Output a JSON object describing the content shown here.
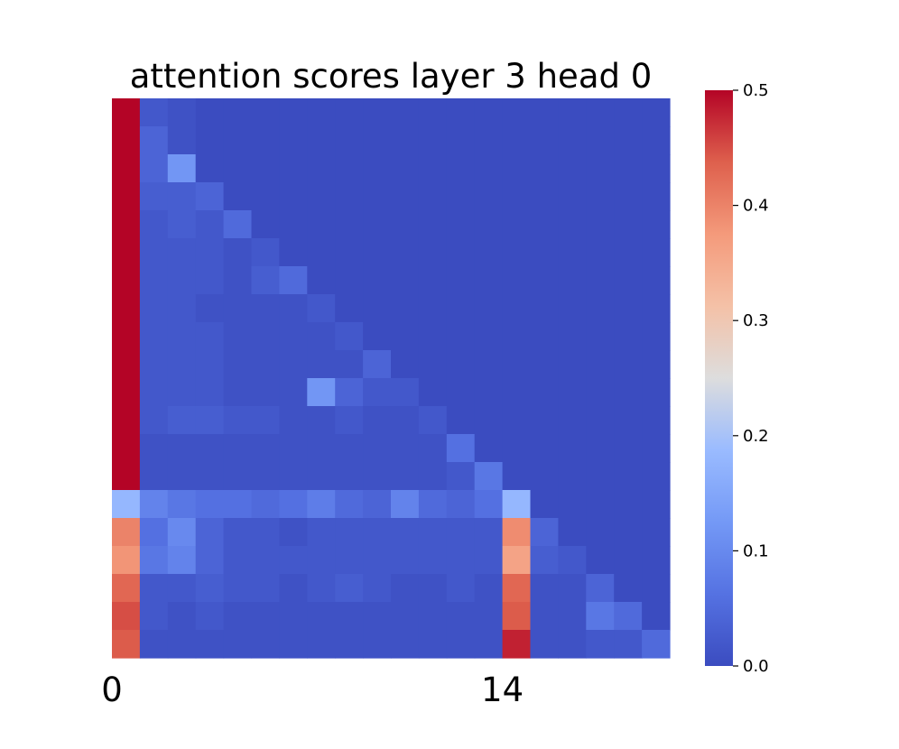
{
  "chart_data": {
    "type": "heatmap",
    "title": "attention scores layer 3 head 0",
    "xlabel": "",
    "ylabel": "",
    "x_tick_labels": [
      {
        "index": 0,
        "label": "0"
      },
      {
        "index": 14,
        "label": "14"
      }
    ],
    "y_tick_labels": [],
    "colormap": "coolwarm",
    "color_range": [
      0.0,
      0.5
    ],
    "colorbar": {
      "ticks": [
        0.0,
        0.1,
        0.2,
        0.3,
        0.4,
        0.5
      ],
      "tick_labels": [
        "0.0",
        "0.1",
        "0.2",
        "0.3",
        "0.4",
        "0.5"
      ],
      "position": "right"
    },
    "rows": 20,
    "cols": 20,
    "values": [
      [
        0.5,
        0.02,
        0.01,
        0,
        0,
        0,
        0,
        0,
        0,
        0,
        0,
        0,
        0,
        0,
        0,
        0,
        0,
        0,
        0,
        0
      ],
      [
        0.5,
        0.04,
        0.01,
        0,
        0,
        0,
        0,
        0,
        0,
        0,
        0,
        0,
        0,
        0,
        0,
        0,
        0,
        0,
        0,
        0
      ],
      [
        0.5,
        0.04,
        0.12,
        0,
        0,
        0,
        0,
        0,
        0,
        0,
        0,
        0,
        0,
        0,
        0,
        0,
        0,
        0,
        0,
        0
      ],
      [
        0.5,
        0.03,
        0.03,
        0.04,
        0,
        0,
        0,
        0,
        0,
        0,
        0,
        0,
        0,
        0,
        0,
        0,
        0,
        0,
        0,
        0
      ],
      [
        0.5,
        0.02,
        0.03,
        0.02,
        0.05,
        0,
        0,
        0,
        0,
        0,
        0,
        0,
        0,
        0,
        0,
        0,
        0,
        0,
        0,
        0
      ],
      [
        0.5,
        0.02,
        0.02,
        0.02,
        0.01,
        0.02,
        0,
        0,
        0,
        0,
        0,
        0,
        0,
        0,
        0,
        0,
        0,
        0,
        0,
        0
      ],
      [
        0.5,
        0.02,
        0.02,
        0.02,
        0.01,
        0.03,
        0.05,
        0,
        0,
        0,
        0,
        0,
        0,
        0,
        0,
        0,
        0,
        0,
        0,
        0
      ],
      [
        0.5,
        0.02,
        0.02,
        0.01,
        0.01,
        0.01,
        0.01,
        0.02,
        0,
        0,
        0,
        0,
        0,
        0,
        0,
        0,
        0,
        0,
        0,
        0
      ],
      [
        0.5,
        0.02,
        0.02,
        0.02,
        0.01,
        0.01,
        0.01,
        0.01,
        0.02,
        0,
        0,
        0,
        0,
        0,
        0,
        0,
        0,
        0,
        0,
        0
      ],
      [
        0.5,
        0.02,
        0.02,
        0.02,
        0.01,
        0.01,
        0.01,
        0.01,
        0.01,
        0.04,
        0,
        0,
        0,
        0,
        0,
        0,
        0,
        0,
        0,
        0
      ],
      [
        0.5,
        0.02,
        0.02,
        0.02,
        0.01,
        0.01,
        0.01,
        0.12,
        0.04,
        0.02,
        0.02,
        0,
        0,
        0,
        0,
        0,
        0,
        0,
        0,
        0
      ],
      [
        0.5,
        0.02,
        0.03,
        0.03,
        0.02,
        0.02,
        0.01,
        0.01,
        0.02,
        0.01,
        0.01,
        0.02,
        0,
        0,
        0,
        0,
        0,
        0,
        0,
        0
      ],
      [
        0.5,
        0.01,
        0.01,
        0.01,
        0.01,
        0.01,
        0.01,
        0.01,
        0.01,
        0.01,
        0.01,
        0.01,
        0.06,
        0,
        0,
        0,
        0,
        0,
        0,
        0
      ],
      [
        0.5,
        0.01,
        0.01,
        0.01,
        0.01,
        0.01,
        0.01,
        0.01,
        0.01,
        0.01,
        0.01,
        0.01,
        0.02,
        0.07,
        0,
        0,
        0,
        0,
        0,
        0
      ],
      [
        0.18,
        0.09,
        0.07,
        0.06,
        0.06,
        0.05,
        0.06,
        0.08,
        0.05,
        0.04,
        0.09,
        0.05,
        0.04,
        0.06,
        0.18,
        0,
        0,
        0,
        0,
        0
      ],
      [
        0.4,
        0.06,
        0.1,
        0.04,
        0.02,
        0.02,
        0.01,
        0.02,
        0.02,
        0.02,
        0.02,
        0.02,
        0.02,
        0.02,
        0.39,
        0.04,
        0,
        0,
        0,
        0
      ],
      [
        0.38,
        0.07,
        0.09,
        0.04,
        0.02,
        0.02,
        0.02,
        0.02,
        0.02,
        0.02,
        0.02,
        0.02,
        0.02,
        0.02,
        0.36,
        0.03,
        0.02,
        0,
        0,
        0
      ],
      [
        0.43,
        0.02,
        0.02,
        0.03,
        0.02,
        0.02,
        0.01,
        0.02,
        0.03,
        0.02,
        0.01,
        0.01,
        0.02,
        0.01,
        0.43,
        0.01,
        0.01,
        0.04,
        0,
        0
      ],
      [
        0.45,
        0.02,
        0.01,
        0.02,
        0.01,
        0.01,
        0.01,
        0.01,
        0.01,
        0.01,
        0.01,
        0.01,
        0.01,
        0.01,
        0.44,
        0.01,
        0.01,
        0.07,
        0.05,
        0
      ],
      [
        0.44,
        0.01,
        0.01,
        0.01,
        0.01,
        0.01,
        0.01,
        0.01,
        0.01,
        0.01,
        0.01,
        0.01,
        0.01,
        0.01,
        0.48,
        0.01,
        0.01,
        0.02,
        0.02,
        0.05
      ]
    ]
  }
}
